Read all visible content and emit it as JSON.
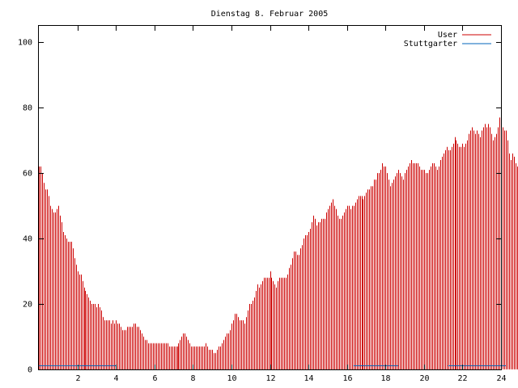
{
  "chart_data": {
    "type": "bar",
    "title": "Dienstag 8. Februar 2005",
    "xlabel": "",
    "ylabel": "",
    "xlim": [
      0,
      24
    ],
    "ylim": [
      0,
      105
    ],
    "x_ticks": [
      2,
      4,
      6,
      8,
      10,
      12,
      14,
      16,
      18,
      20,
      22,
      24
    ],
    "y_ticks": [
      0,
      20,
      40,
      60,
      80,
      100
    ],
    "grid": false,
    "legend_position": "top-right",
    "interval_minutes": 5,
    "series": [
      {
        "name": "User",
        "color": "#cc0000",
        "values": [
          62,
          62,
          60,
          57,
          55,
          55,
          53,
          50,
          49,
          48,
          48,
          49,
          50,
          47,
          45,
          42,
          41,
          40,
          39,
          39,
          39,
          37,
          34,
          32,
          30,
          29,
          29,
          27,
          25,
          24,
          23,
          22,
          21,
          20,
          20,
          20,
          19,
          20,
          19,
          18,
          16,
          15,
          15,
          15,
          15,
          14,
          15,
          14,
          15,
          14,
          14,
          13,
          12,
          12,
          12,
          13,
          13,
          13,
          13,
          14,
          14,
          13,
          13,
          12,
          11,
          10,
          9,
          9,
          8,
          8,
          8,
          8,
          8,
          8,
          8,
          8,
          8,
          8,
          8,
          8,
          8,
          7,
          7,
          7,
          7,
          7,
          7,
          8,
          9,
          10,
          11,
          11,
          10,
          9,
          8,
          7,
          7,
          7,
          7,
          7,
          7,
          7,
          7,
          7,
          8,
          7,
          6,
          6,
          6,
          5,
          5,
          6,
          7,
          7,
          8,
          9,
          10,
          11,
          11,
          12,
          14,
          15,
          17,
          17,
          16,
          15,
          15,
          15,
          14,
          16,
          18,
          20,
          20,
          21,
          22,
          24,
          26,
          25,
          26,
          27,
          28,
          28,
          28,
          28,
          30,
          28,
          27,
          26,
          25,
          27,
          28,
          28,
          28,
          28,
          28,
          29,
          31,
          32,
          34,
          36,
          36,
          35,
          35,
          37,
          38,
          40,
          41,
          41,
          42,
          43,
          45,
          47,
          46,
          44,
          45,
          45,
          46,
          46,
          46,
          48,
          49,
          50,
          51,
          52,
          50,
          49,
          47,
          46,
          46,
          47,
          48,
          49,
          50,
          50,
          49,
          50,
          50,
          51,
          52,
          53,
          53,
          53,
          52,
          53,
          54,
          55,
          55,
          56,
          56,
          58,
          58,
          60,
          60,
          61,
          63,
          62,
          62,
          60,
          58,
          56,
          57,
          58,
          59,
          60,
          61,
          60,
          59,
          58,
          60,
          61,
          62,
          63,
          64,
          63,
          63,
          63,
          63,
          62,
          61,
          61,
          61,
          60,
          60,
          61,
          62,
          63,
          63,
          62,
          61,
          62,
          64,
          65,
          66,
          67,
          68,
          67,
          67,
          68,
          69,
          71,
          70,
          69,
          68,
          68,
          69,
          68,
          69,
          70,
          72,
          73,
          74,
          73,
          72,
          73,
          72,
          71,
          73,
          74,
          75,
          74,
          75,
          74,
          72,
          70,
          71,
          72,
          74,
          77,
          76,
          74,
          73,
          73,
          70,
          66,
          64,
          66,
          65,
          63,
          62
        ]
      },
      {
        "name": "Stuttgarter",
        "color": "#0066bb",
        "values": [
          1,
          1,
          1,
          1,
          1,
          1,
          1,
          1,
          1,
          1,
          1,
          1,
          1,
          1,
          1,
          1,
          1,
          1,
          1,
          1,
          1,
          1,
          1,
          1,
          1,
          1,
          1,
          1,
          1,
          1,
          1,
          1,
          1,
          1,
          1,
          1,
          1,
          1,
          1,
          1,
          1,
          1,
          1,
          1,
          1,
          1,
          1,
          1,
          0,
          0,
          0,
          0,
          0,
          0,
          0,
          0,
          0,
          0,
          0,
          0,
          0,
          0,
          0,
          0,
          0,
          0,
          0,
          0,
          0,
          0,
          0,
          0,
          0,
          0,
          0,
          0,
          0,
          0,
          0,
          0,
          0,
          0,
          0,
          0,
          0,
          0,
          0,
          0,
          0,
          0,
          0,
          0,
          0,
          0,
          0,
          0,
          0,
          0,
          0,
          0,
          0,
          0,
          0,
          0,
          0,
          0,
          0,
          0,
          0,
          0,
          0,
          0,
          0,
          0,
          0,
          0,
          0,
          0,
          0,
          0,
          0,
          0,
          0,
          0,
          0,
          0,
          0,
          0,
          0,
          0,
          0,
          0,
          0,
          0,
          0,
          0,
          0,
          0,
          0,
          0,
          0,
          0,
          0,
          0,
          0,
          0,
          0,
          0,
          0,
          0,
          0,
          0,
          0,
          0,
          0,
          0,
          0,
          0,
          0,
          0,
          0,
          0,
          0,
          0,
          0,
          0,
          0,
          0,
          0,
          0,
          0,
          0,
          0,
          0,
          0,
          0,
          0,
          0,
          0,
          0,
          0,
          0,
          0,
          0,
          0,
          0,
          0,
          0,
          0,
          0,
          0,
          0,
          0,
          0,
          0,
          0,
          1,
          1,
          1,
          1,
          1,
          1,
          1,
          1,
          1,
          1,
          1,
          1,
          1,
          1,
          1,
          1,
          1,
          1,
          1,
          1,
          1,
          1,
          1,
          1,
          1,
          1,
          1,
          1,
          0,
          0,
          0,
          0,
          0,
          0,
          0,
          0,
          0,
          0,
          0,
          0,
          0,
          0,
          0,
          0,
          0,
          0,
          0,
          0,
          0,
          0,
          0,
          0,
          0,
          0,
          0,
          0,
          0,
          0,
          0,
          1,
          1,
          1,
          1,
          1,
          1,
          1,
          1,
          1,
          1,
          1,
          1,
          1,
          1,
          1,
          1,
          1,
          1,
          1,
          1,
          1,
          1,
          1,
          1,
          1,
          1,
          1,
          1,
          1,
          1,
          1,
          1,
          1,
          1,
          1,
          1
        ]
      }
    ]
  }
}
